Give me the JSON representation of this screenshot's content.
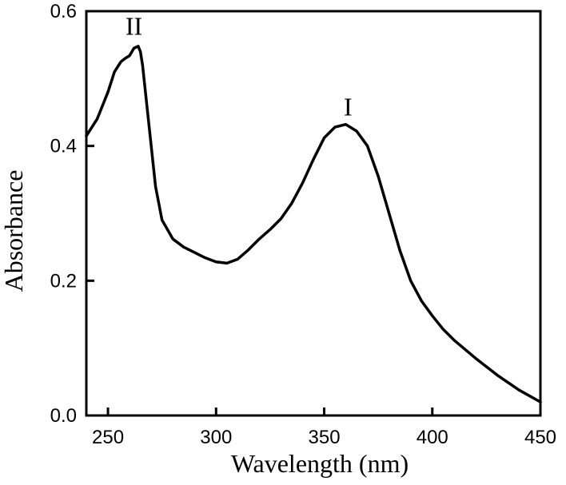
{
  "chart_data": {
    "type": "line",
    "title": "",
    "xlabel": "Wavelength (nm)",
    "ylabel": "Absorbance",
    "xlim": [
      240,
      450
    ],
    "ylim": [
      0.0,
      0.6
    ],
    "x_ticks": [
      250,
      300,
      350,
      400,
      450
    ],
    "y_ticks": [
      0.0,
      0.2,
      0.4,
      0.6
    ],
    "x_tick_labels": [
      "250",
      "300",
      "350",
      "400",
      "450"
    ],
    "y_tick_labels": [
      "0.0",
      "0.2",
      "0.4",
      "0.6"
    ],
    "grid": false,
    "legend": "none",
    "series": [
      {
        "x": [
          240,
          245,
          250,
          253,
          256,
          258,
          260,
          262,
          264,
          265,
          266,
          268,
          270,
          272,
          275,
          280,
          285,
          290,
          295,
          300,
          305,
          310,
          315,
          320,
          325,
          330,
          335,
          340,
          345,
          350,
          355,
          360,
          365,
          370,
          375,
          380,
          385,
          390,
          395,
          400,
          405,
          410,
          420,
          430,
          440,
          450
        ],
        "y": [
          0.415,
          0.44,
          0.48,
          0.51,
          0.525,
          0.53,
          0.534,
          0.545,
          0.548,
          0.54,
          0.52,
          0.46,
          0.4,
          0.34,
          0.29,
          0.262,
          0.25,
          0.242,
          0.234,
          0.228,
          0.226,
          0.232,
          0.246,
          0.262,
          0.276,
          0.292,
          0.315,
          0.345,
          0.38,
          0.412,
          0.428,
          0.432,
          0.422,
          0.4,
          0.355,
          0.3,
          0.245,
          0.2,
          0.17,
          0.148,
          0.128,
          0.112,
          0.085,
          0.06,
          0.038,
          0.02
        ]
      }
    ],
    "annotations": [
      {
        "text": "II",
        "x": 262,
        "y": 0.565
      },
      {
        "text": "I",
        "x": 361,
        "y": 0.445
      }
    ]
  }
}
